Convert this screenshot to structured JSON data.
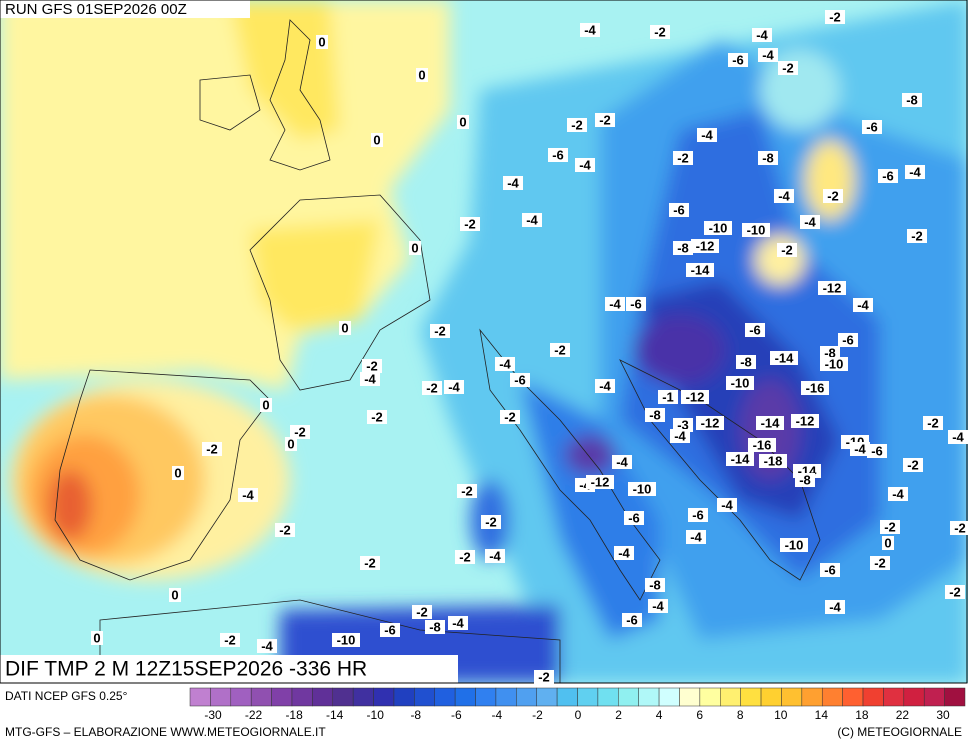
{
  "header": {
    "run": "RUN GFS 01SEP2026 00Z"
  },
  "map": {
    "title": "DIF TMP 2 M 12Z15SEP2026 -336 HR",
    "contour_labels": [
      0,
      -4,
      -2,
      -2,
      -4,
      -6,
      -4,
      -2,
      0,
      -8,
      0,
      0,
      -2,
      -2,
      -4,
      -6,
      -6,
      -4,
      -2,
      -8,
      -6,
      -4,
      -4,
      -4,
      -2,
      -4,
      -2,
      -6,
      -10,
      -10,
      -4,
      0,
      -8,
      -12,
      -2,
      -2,
      -14,
      -12,
      -4,
      -4,
      -6,
      0,
      -2,
      -6,
      -6,
      -2,
      -4,
      -4,
      -2,
      -8,
      -14,
      -8,
      -10,
      -6,
      -2,
      -4,
      -4,
      -10,
      -16,
      -1,
      -12,
      0,
      -2,
      -2,
      -8,
      -12,
      -14,
      -12,
      -3,
      -4,
      -2,
      0,
      -2,
      -10,
      -4,
      -6,
      -2,
      -4,
      -16,
      -14,
      -18,
      -14,
      -8,
      -4,
      -2,
      0,
      -4,
      -12,
      -10,
      -2,
      -4,
      -4,
      -4,
      -6,
      -6,
      -2,
      -2,
      -2,
      -2,
      -4,
      0,
      -2,
      -4,
      -2,
      -4,
      -10,
      -2,
      -6,
      -8,
      0,
      -2,
      -4,
      -4,
      -2,
      -6,
      -6,
      -8,
      -4,
      0,
      -2,
      -4,
      -10,
      -2
    ]
  },
  "colorbar": {
    "source": "DATI NCEP GFS 0.25°",
    "colors": [
      "#c080d0",
      "#b070c8",
      "#a060c0",
      "#9050b0",
      "#8040a8",
      "#7038a0",
      "#603098",
      "#503090",
      "#4030a0",
      "#3030b0",
      "#2040c0",
      "#2050d0",
      "#2060e0",
      "#2070e8",
      "#3080f0",
      "#4090f0",
      "#50a0f0",
      "#60b0f0",
      "#50c0f0",
      "#60d0f0",
      "#70e0f0",
      "#90f0f0",
      "#b0f8f8",
      "#d0ffff",
      "#ffffd0",
      "#ffffa0",
      "#fff070",
      "#ffe040",
      "#ffd030",
      "#ffc030",
      "#ffa030",
      "#ff8030",
      "#ff6030",
      "#f04030",
      "#e03040",
      "#d02040",
      "#c02050",
      "#a01040"
    ],
    "ticks": [
      -30,
      -22,
      -18,
      -14,
      -10,
      -8,
      -6,
      -4,
      -2,
      0,
      2,
      4,
      6,
      8,
      10,
      14,
      18,
      22,
      30
    ]
  },
  "footer": {
    "left": "MTG-GFS – ELABORAZIONE WWW.METEOGIORNALE.IT",
    "right": "(C) METEOGIORNALE"
  }
}
